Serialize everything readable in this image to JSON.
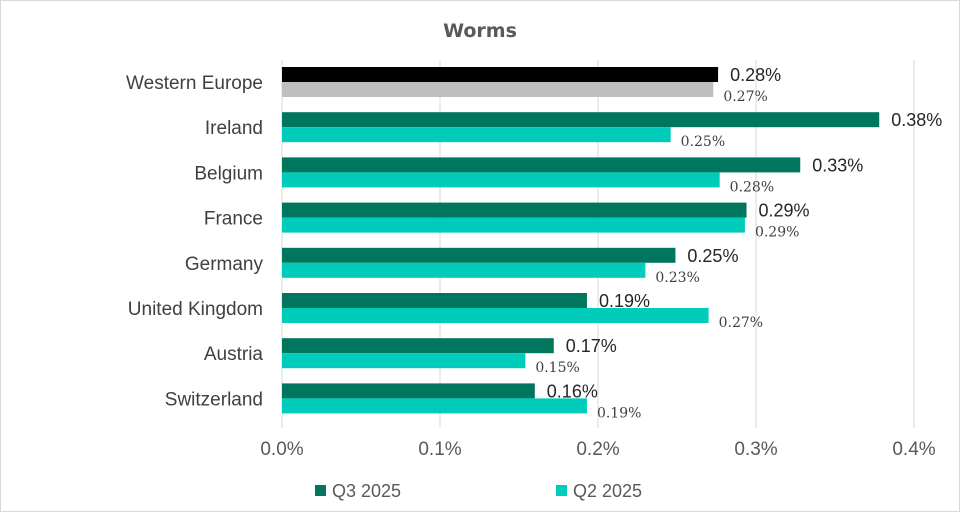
{
  "chart_data": {
    "type": "bar",
    "orientation": "horizontal",
    "title": "Worms",
    "categories": [
      "Western Europe",
      "Ireland",
      "Belgium",
      "France",
      "Germany",
      "United Kingdom",
      "Austria",
      "Switzerland"
    ],
    "series": [
      {
        "name": "Q3 2025",
        "color": "#00765f",
        "highlight_color": "#000000",
        "values": [
          0.276,
          0.378,
          0.328,
          0.294,
          0.249,
          0.193,
          0.172,
          0.16
        ],
        "labels": [
          "0.28%",
          "0.38%",
          "0.33%",
          "0.29%",
          "0.25%",
          "0.19%",
          "0.17%",
          "0.16%"
        ]
      },
      {
        "name": "Q2 2025",
        "color": "#00ccbb",
        "highlight_color": "#bfbfbf",
        "values": [
          0.273,
          0.246,
          0.277,
          0.293,
          0.23,
          0.27,
          0.154,
          0.193
        ],
        "labels": [
          "0.27%",
          "0.25%",
          "0.28%",
          "0.29%",
          "0.23%",
          "0.27%",
          "0.15%",
          "0.19%"
        ]
      }
    ],
    "xlim": [
      0,
      0.4
    ],
    "xticks": [
      0,
      0.1,
      0.2,
      0.3,
      0.4
    ],
    "xtick_labels": [
      "0.0%",
      "0.1%",
      "0.2%",
      "0.3%",
      "0.4%"
    ],
    "grid": true,
    "legend_position": "bottom"
  }
}
